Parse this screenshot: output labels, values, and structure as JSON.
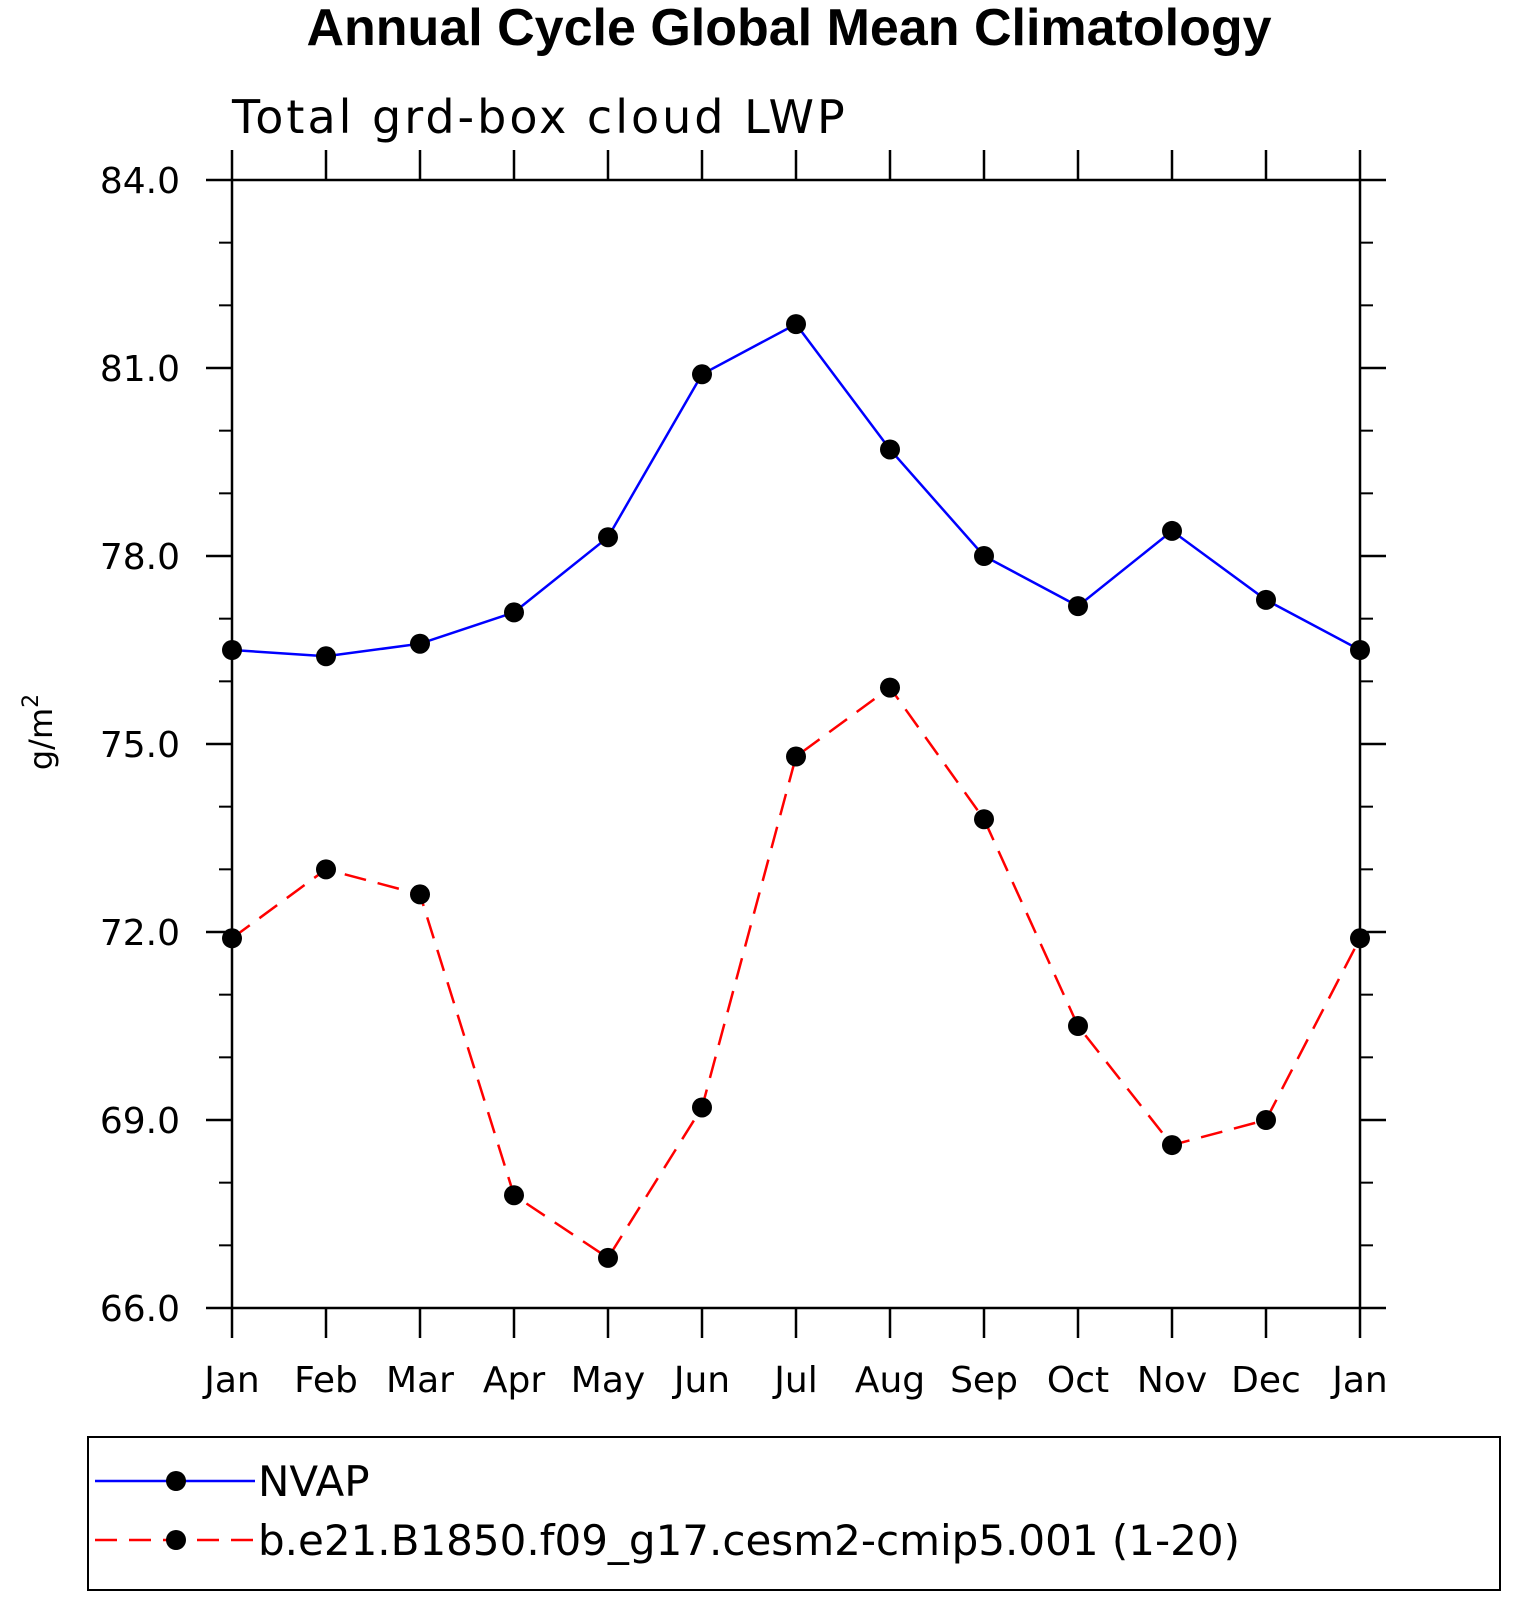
{
  "chart_data": {
    "type": "line",
    "title": "Annual Cycle Global Mean Climatology",
    "subtitle": "Total grd-box cloud LWP",
    "xlabel": "",
    "ylabel": "g/m",
    "ylabel_superscript": "2",
    "categories": [
      "Jan",
      "Feb",
      "Mar",
      "Apr",
      "May",
      "Jun",
      "Jul",
      "Aug",
      "Sep",
      "Oct",
      "Nov",
      "Dec",
      "Jan"
    ],
    "ylim": [
      66.0,
      84.0
    ],
    "yticks": [
      "66.0",
      "69.0",
      "72.0",
      "75.0",
      "78.0",
      "81.0",
      "84.0"
    ],
    "series": [
      {
        "name": "NVAP",
        "color": "#0000ff",
        "dash": "solid",
        "values": [
          76.5,
          76.4,
          76.6,
          77.1,
          78.3,
          80.9,
          81.7,
          79.7,
          78.0,
          77.2,
          78.4,
          77.3,
          76.5
        ]
      },
      {
        "name": "b.e21.B1850.f09_g17.cesm2-cmip5.001 (1-20)",
        "color": "#ff0000",
        "dash": "dashed",
        "values": [
          71.9,
          73.0,
          72.6,
          67.8,
          66.8,
          69.2,
          74.8,
          75.9,
          73.8,
          70.5,
          68.6,
          69.0,
          71.9
        ]
      }
    ],
    "grid": false,
    "legend": "bottom"
  }
}
